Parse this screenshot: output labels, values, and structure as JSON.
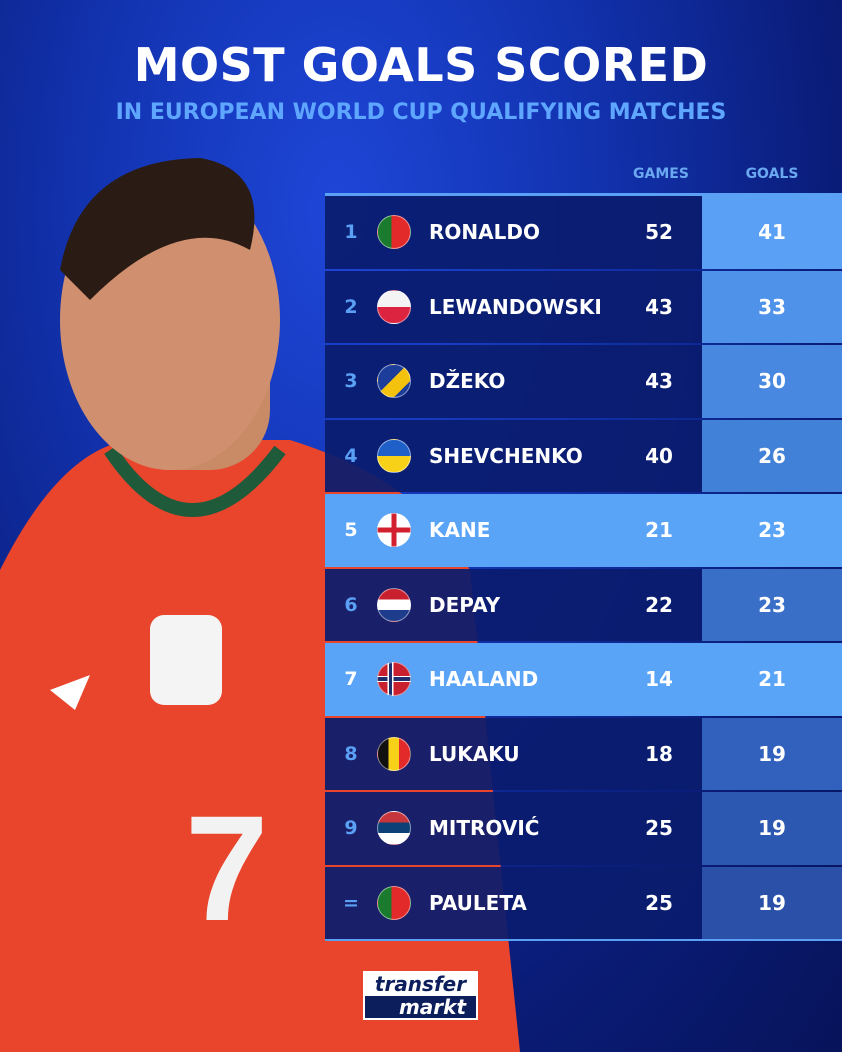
{
  "title": "MOST GOALS SCORED",
  "subtitle": "IN EUROPEAN WORLD CUP QUALIFYING MATCHES",
  "columns": {
    "games": "GAMES",
    "goals": "GOALS"
  },
  "rows": [
    {
      "rank": "1",
      "flag": "portugal",
      "name": "RONALDO",
      "games": "52",
      "goals": "41",
      "highlight": false
    },
    {
      "rank": "2",
      "flag": "poland",
      "name": "LEWANDOWSKI",
      "games": "43",
      "goals": "33",
      "highlight": false
    },
    {
      "rank": "3",
      "flag": "bosnia",
      "name": "DŽEKO",
      "games": "43",
      "goals": "30",
      "highlight": false
    },
    {
      "rank": "4",
      "flag": "ukraine",
      "name": "SHEVCHENKO",
      "games": "40",
      "goals": "26",
      "highlight": false
    },
    {
      "rank": "5",
      "flag": "england",
      "name": "KANE",
      "games": "21",
      "goals": "23",
      "highlight": true
    },
    {
      "rank": "6",
      "flag": "netherlands",
      "name": "DEPAY",
      "games": "22",
      "goals": "23",
      "highlight": false
    },
    {
      "rank": "7",
      "flag": "norway",
      "name": "HAALAND",
      "games": "14",
      "goals": "21",
      "highlight": true
    },
    {
      "rank": "8",
      "flag": "belgium",
      "name": "LUKAKU",
      "games": "18",
      "goals": "19",
      "highlight": false
    },
    {
      "rank": "9",
      "flag": "serbia",
      "name": "MITROVIĆ",
      "games": "25",
      "goals": "19",
      "highlight": false
    },
    {
      "rank": "=",
      "flag": "portugal",
      "name": "PAULETA",
      "games": "25",
      "goals": "19",
      "highlight": false
    }
  ],
  "goals_cell_colors": [
    "#5aa0f5",
    "#4f92ea",
    "#4888e0",
    "#4281d8",
    "#5aa4f7",
    "#3a6fc8",
    "#5aa4f7",
    "#3260bd",
    "#2d58b2",
    "#2a50a8"
  ],
  "player": {
    "shirt_number": "7"
  },
  "logo": {
    "line1": "transfer",
    "line2": "markt"
  }
}
